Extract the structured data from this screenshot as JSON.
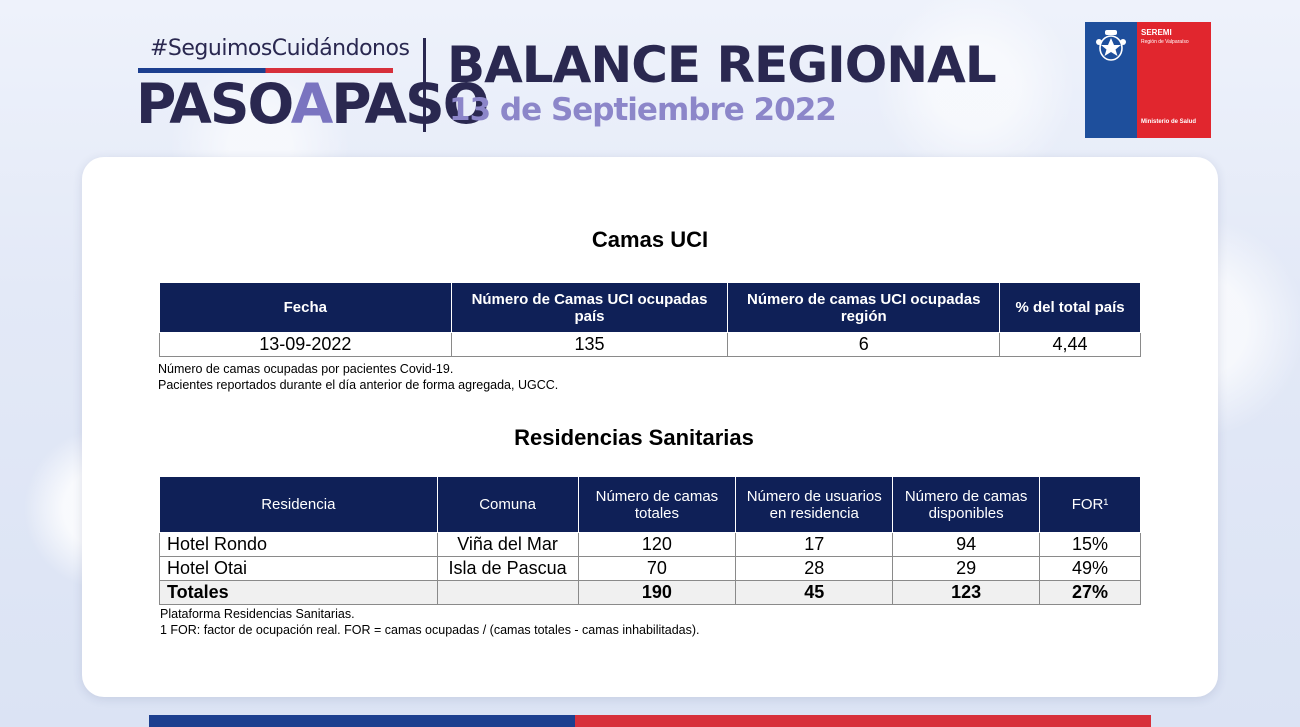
{
  "header": {
    "hashtag": "#SeguimosCuidándonos",
    "brand_left": "PASO",
    "brand_mid": "A",
    "brand_right": "PASO",
    "title": "BALANCE REGIONAL",
    "date": "13 de Septiembre 2022",
    "logo": {
      "name": "SEREMI",
      "region": "Región de Valparaíso",
      "ministry": "Ministerio de Salud",
      "colors": {
        "blue": "#1e4f9c",
        "red": "#e1262e"
      }
    }
  },
  "uci": {
    "title": "Camas UCI",
    "headers": [
      "Fecha",
      "Número de Camas UCI ocupadas país",
      "Número de camas UCI ocupadas región",
      "% del total país"
    ],
    "rows": [
      [
        "13-09-2022",
        "135",
        "6",
        "4,44"
      ]
    ],
    "notes": [
      "Número de  camas ocupadas por pacientes Covid-19.",
      "Pacientes reportados durante el día anterior de forma agregada, UGCC."
    ]
  },
  "residencias": {
    "title": "Residencias Sanitarias",
    "headers": [
      "Residencia",
      "Comuna",
      "Número de camas totales",
      "Número de usuarios en residencia",
      "Número de camas disponibles",
      "FOR¹"
    ],
    "rows": [
      [
        "Hotel Rondo",
        "Viña del Mar",
        "120",
        "17",
        "94",
        "15%"
      ],
      [
        "Hotel Otai",
        "Isla de Pascua",
        "70",
        "28",
        "29",
        "49%"
      ]
    ],
    "totals": [
      "Totales",
      "",
      "190",
      "45",
      "123",
      "27%"
    ],
    "notes": [
      "Plataforma Residencias Sanitarias.",
      "1 FOR: factor de ocupación real. FOR = camas ocupadas / (camas totales - camas inhabilitadas)."
    ]
  },
  "colors": {
    "header_navy": "#0f2057",
    "brand_dark": "#2a2850",
    "brand_light": "#8c86c9"
  }
}
